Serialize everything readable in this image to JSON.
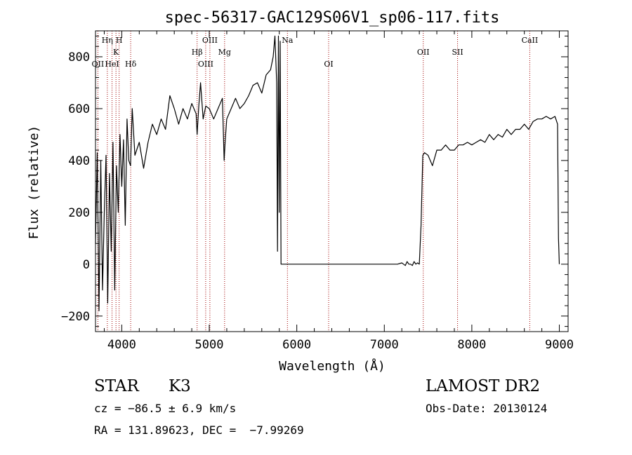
{
  "chart_data": {
    "type": "line",
    "title": "spec-56317-GAC129S06V1_sp06-117.fits",
    "xlabel": "Wavelength (Å)",
    "ylabel": "Flux (relative)",
    "xlim": [
      3700,
      9100
    ],
    "ylim": [
      -260,
      900
    ],
    "xticks": [
      4000,
      5000,
      6000,
      7000,
      8000,
      9000
    ],
    "yticks": [
      -200,
      0,
      200,
      400,
      600,
      800
    ],
    "xtick_labels": [
      "4000",
      "5000",
      "6000",
      "7000",
      "8000",
      "9000"
    ],
    "ytick_labels": [
      "−200",
      "0",
      "200",
      "400",
      "600",
      "800"
    ],
    "grid": false,
    "series": [
      {
        "x": [
          3700,
          3720,
          3740,
          3760,
          3780,
          3800,
          3820,
          3840,
          3860,
          3880,
          3900,
          3920,
          3940,
          3960,
          3980,
          4000,
          4020,
          4040,
          4060,
          4080,
          4100,
          4120,
          4150,
          4200,
          4250,
          4300,
          4350,
          4400,
          4450,
          4500,
          4550,
          4600,
          4650,
          4700,
          4750,
          4800,
          4850,
          4861,
          4880,
          4900,
          4930,
          4960,
          5000,
          5050,
          5100,
          5150,
          5170,
          5183,
          5200,
          5250,
          5300,
          5350,
          5400,
          5450,
          5500,
          5550,
          5600,
          5650,
          5700,
          5730,
          5750,
          5770,
          5780,
          5790,
          5800,
          5810,
          5820,
          5830,
          5850,
          6000,
          6500,
          7000,
          7150,
          7200,
          7220,
          7240,
          7260,
          7280,
          7300,
          7320,
          7340,
          7360,
          7380,
          7400,
          7420,
          7440,
          7460,
          7500,
          7550,
          7600,
          7650,
          7700,
          7750,
          7800,
          7850,
          7900,
          7950,
          8000,
          8050,
          8100,
          8150,
          8200,
          8250,
          8300,
          8350,
          8400,
          8450,
          8500,
          8550,
          8600,
          8650,
          8700,
          8750,
          8800,
          8850,
          8900,
          8950,
          8980,
          8990,
          9000
        ],
        "y": [
          80,
          430,
          -180,
          400,
          -100,
          200,
          420,
          -150,
          350,
          50,
          470,
          -100,
          380,
          200,
          500,
          300,
          480,
          150,
          560,
          400,
          380,
          600,
          420,
          470,
          370,
          470,
          540,
          500,
          560,
          520,
          650,
          600,
          540,
          600,
          560,
          620,
          580,
          500,
          610,
          700,
          560,
          610,
          600,
          560,
          600,
          640,
          400,
          480,
          560,
          600,
          640,
          600,
          620,
          650,
          690,
          700,
          660,
          730,
          750,
          800,
          880,
          700,
          50,
          880,
          200,
          860,
          0,
          0,
          0,
          0,
          0,
          0,
          0,
          5,
          0,
          -5,
          10,
          0,
          0,
          -5,
          10,
          0,
          5,
          0,
          150,
          420,
          430,
          420,
          380,
          440,
          440,
          460,
          440,
          440,
          460,
          460,
          470,
          460,
          470,
          480,
          470,
          500,
          480,
          500,
          490,
          520,
          500,
          520,
          520,
          540,
          520,
          550,
          560,
          560,
          570,
          560,
          570,
          540,
          100,
          0
        ]
      }
    ],
    "lines": [
      {
        "x": 3727,
        "label": "OII",
        "row": 3
      },
      {
        "x": 3835,
        "label": "Hη",
        "row": 1
      },
      {
        "x": 3889,
        "label": "HeI",
        "row": 3
      },
      {
        "x": 3934,
        "label": "K",
        "row": 2
      },
      {
        "x": 3970,
        "label": "H",
        "row": 1
      },
      {
        "x": 4102,
        "label": "Hδ",
        "row": 3
      },
      {
        "x": 4861,
        "label": "Hβ",
        "row": 2
      },
      {
        "x": 4959,
        "label": "OIII",
        "row": 3
      },
      {
        "x": 5007,
        "label": "OIII",
        "row": 1
      },
      {
        "x": 5175,
        "label": "Mg",
        "row": 2
      },
      {
        "x": 5893,
        "label": "Na",
        "row": 1
      },
      {
        "x": 6364,
        "label": "OI",
        "row": 3
      },
      {
        "x": 7445,
        "label": "OII",
        "row": 2
      },
      {
        "x": 7837,
        "label": "SII",
        "row": 2
      },
      {
        "x": 8662,
        "label": "CaII",
        "row": 1
      }
    ]
  },
  "info": {
    "object_class": "STAR",
    "subclass": "K3",
    "survey": "LAMOST DR2",
    "cz": "cz = −86.5 ± 6.9 km/s",
    "obs_date": "Obs-Date: 20130124",
    "coords": "RA = 131.89623, DEC =  −7.99269"
  },
  "colors": {
    "spectrum": "#000000",
    "line_markers": "#a00000",
    "background": "#ffffff"
  }
}
